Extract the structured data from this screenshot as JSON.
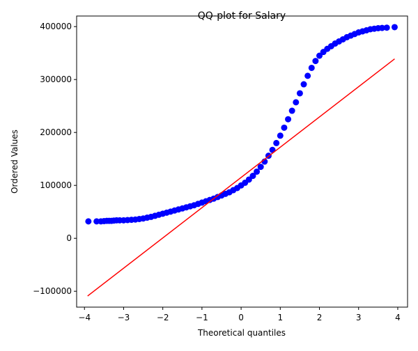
{
  "chart_data": {
    "type": "scatter",
    "title": "QQ-plot for Salary",
    "xlabel": "Theoretical quantiles",
    "ylabel": "Ordered Values",
    "xlim": [
      -4.2,
      4.25
    ],
    "ylim": [
      -130000,
      420000
    ],
    "xticks": [
      -4,
      -3,
      -2,
      -1,
      0,
      1,
      2,
      3,
      4
    ],
    "xtick_labels": [
      "−4",
      "−3",
      "−2",
      "−1",
      "0",
      "1",
      "2",
      "3",
      "4"
    ],
    "yticks": [
      -100000,
      0,
      100000,
      200000,
      300000,
      400000
    ],
    "ytick_labels": [
      "−100000",
      "0",
      "100000",
      "200000",
      "300000",
      "400000"
    ],
    "grid": false,
    "series": [
      {
        "kind": "points",
        "color": "#0000ff",
        "x": [
          -3.9,
          -3.69,
          -3.58,
          -3.5,
          -3.43,
          -3.37,
          -3.31,
          -3.25,
          -3.18,
          -3.1,
          -3.0,
          -2.9,
          -2.8,
          -2.7,
          -2.6,
          -2.5,
          -2.4,
          -2.3,
          -2.2,
          -2.1,
          -2.0,
          -1.9,
          -1.8,
          -1.7,
          -1.6,
          -1.5,
          -1.4,
          -1.3,
          -1.2,
          -1.1,
          -1.0,
          -0.9,
          -0.8,
          -0.7,
          -0.6,
          -0.5,
          -0.4,
          -0.3,
          -0.2,
          -0.1,
          0.0,
          0.1,
          0.2,
          0.3,
          0.4,
          0.5,
          0.6,
          0.7,
          0.8,
          0.9,
          1.0,
          1.1,
          1.2,
          1.3,
          1.4,
          1.5,
          1.6,
          1.7,
          1.8,
          1.9,
          2.0,
          2.1,
          2.2,
          2.3,
          2.4,
          2.5,
          2.6,
          2.7,
          2.8,
          2.9,
          3.0,
          3.1,
          3.2,
          3.3,
          3.4,
          3.5,
          3.6,
          3.72,
          3.92
        ],
        "y": [
          32000,
          32000,
          32000,
          32500,
          33000,
          33000,
          33000,
          33500,
          34000,
          34000,
          34000,
          34500,
          35000,
          35500,
          36500,
          37500,
          39000,
          40500,
          42500,
          44500,
          46500,
          48500,
          50500,
          52500,
          54500,
          56500,
          58500,
          60500,
          62500,
          65000,
          67500,
          70000,
          72500,
          75000,
          78000,
          81000,
          84000,
          87000,
          91000,
          95000,
          100000,
          105000,
          111000,
          118000,
          126000,
          135000,
          145000,
          156000,
          167000,
          180000,
          194000,
          209000,
          225000,
          241000,
          257000,
          274000,
          291000,
          307000,
          322000,
          335000,
          345000,
          352000,
          358000,
          363000,
          368000,
          372000,
          376000,
          380000,
          383000,
          386000,
          389000,
          391000,
          393000,
          395000,
          396000,
          397000,
          397500,
          398000,
          399000
        ]
      },
      {
        "kind": "fit-line",
        "color": "#ff0000",
        "x": [
          -3.92,
          3.92
        ],
        "y": [
          -109000,
          339000
        ]
      }
    ]
  }
}
